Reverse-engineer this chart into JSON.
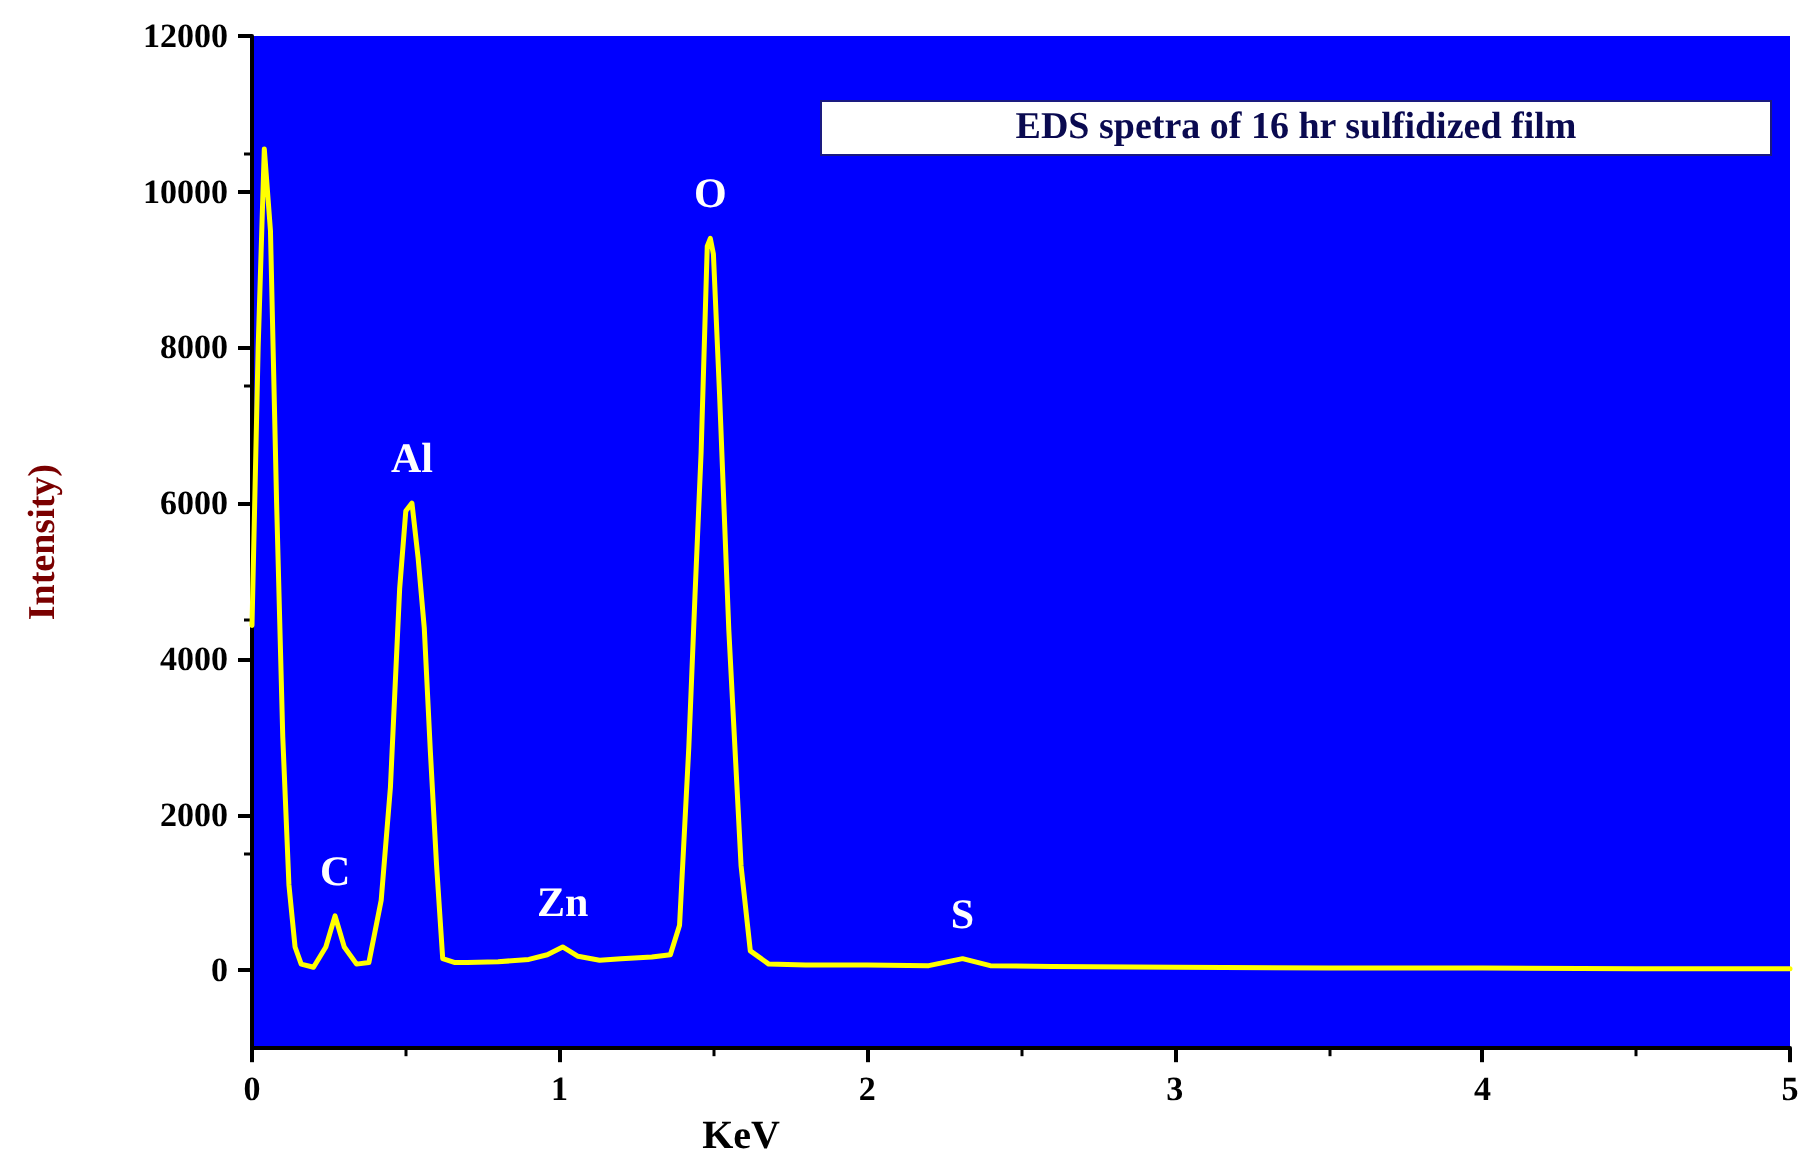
{
  "chart_data": {
    "type": "line",
    "xlabel": "KeV",
    "ylabel": "Intensity)",
    "x": [
      0,
      0.02,
      0.04,
      0.06,
      0.08,
      0.1,
      0.12,
      0.14,
      0.16,
      0.2,
      0.24,
      0.27,
      0.3,
      0.34,
      0.38,
      0.42,
      0.45,
      0.48,
      0.5,
      0.52,
      0.54,
      0.56,
      0.58,
      0.6,
      0.62,
      0.66,
      0.7,
      0.8,
      0.9,
      0.96,
      1.01,
      1.06,
      1.13,
      1.2,
      1.3,
      1.36,
      1.39,
      1.42,
      1.44,
      1.46,
      1.48,
      1.49,
      1.5,
      1.52,
      1.55,
      1.59,
      1.62,
      1.68,
      1.8,
      2,
      2.2,
      2.31,
      2.4,
      2.6,
      3,
      3.5,
      4,
      4.5,
      5
    ],
    "series": [
      {
        "color": "#ffff00",
        "values": [
          4430,
          8000,
          10550,
          9500,
          6000,
          3000,
          1100,
          300,
          80,
          40,
          300,
          700,
          300,
          80,
          100,
          900,
          2350,
          4900,
          5900,
          6000,
          5300,
          4400,
          2800,
          1350,
          150,
          100,
          100,
          110,
          140,
          200,
          300,
          180,
          130,
          150,
          170,
          200,
          580,
          2860,
          4800,
          6650,
          9300,
          9400,
          9200,
          7400,
          4380,
          1340,
          250,
          80,
          70,
          70,
          60,
          150,
          60,
          50,
          40,
          30,
          30,
          20,
          20
        ]
      }
    ],
    "xlim": [
      0,
      5
    ],
    "xticks": [
      0,
      1,
      2,
      3,
      4,
      5
    ],
    "ylim": [
      -1000,
      12000
    ],
    "yticks": [
      0,
      2000,
      4000,
      6000,
      8000,
      10000,
      12000
    ],
    "grid": false,
    "line_style": "solid",
    "marker": "none",
    "annotations": [
      "EDS spetra of 16 hr sulfidized film",
      {
        "text": "C",
        "x": 0.27,
        "y": 700
      },
      {
        "text": "Al",
        "x": 0.52,
        "y": 6000
      },
      {
        "text": "Zn",
        "x": 1.01,
        "y": 300
      },
      {
        "text": "O",
        "x": 1.49,
        "y": 9400
      },
      {
        "text": "S",
        "x": 2.31,
        "y": 150
      }
    ]
  }
}
